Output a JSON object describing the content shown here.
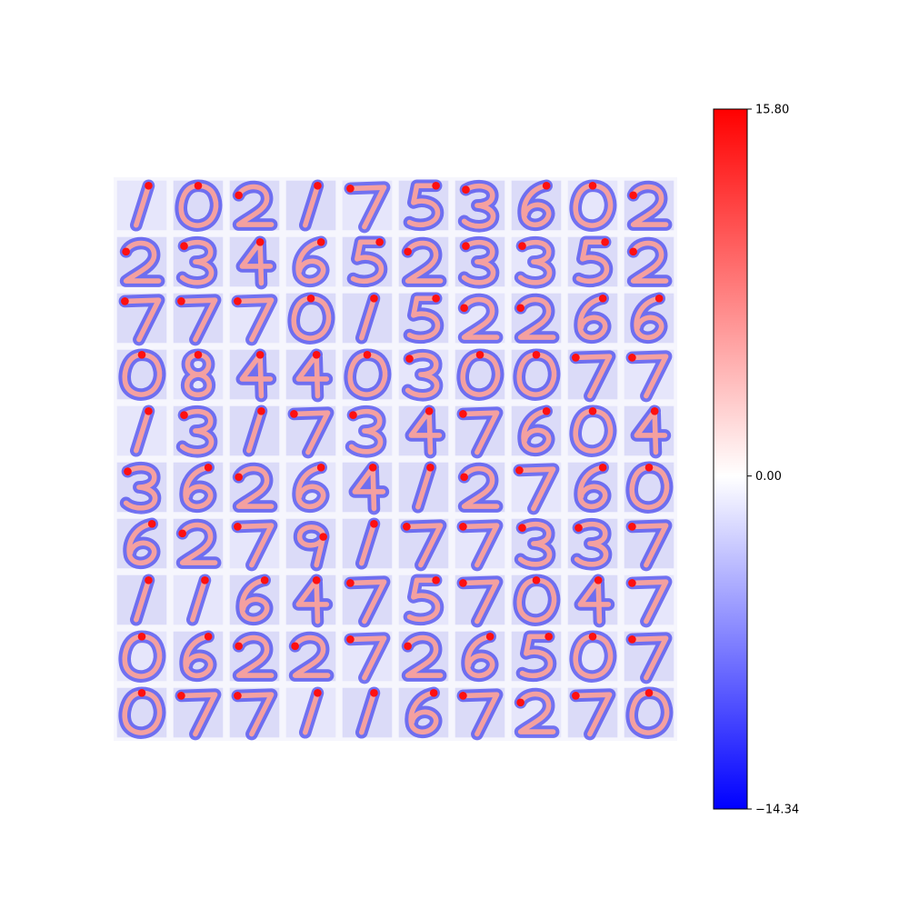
{
  "chart_data": {
    "type": "heatmap",
    "title": "",
    "xlabel": "",
    "ylabel": "",
    "grid": {
      "rows": 10,
      "cols": 10
    },
    "digits": [
      [
        1,
        0,
        2,
        1,
        7,
        5,
        3,
        6,
        0,
        2
      ],
      [
        2,
        3,
        4,
        6,
        5,
        2,
        3,
        3,
        5,
        2
      ],
      [
        7,
        7,
        7,
        0,
        1,
        5,
        2,
        2,
        6,
        6
      ],
      [
        0,
        8,
        4,
        4,
        0,
        3,
        0,
        0,
        7,
        7
      ],
      [
        1,
        3,
        1,
        7,
        3,
        4,
        7,
        6,
        0,
        4
      ],
      [
        3,
        6,
        2,
        6,
        4,
        1,
        2,
        7,
        6,
        0
      ],
      [
        6,
        2,
        7,
        9,
        1,
        7,
        7,
        3,
        3,
        7
      ],
      [
        1,
        1,
        6,
        4,
        7,
        5,
        7,
        0,
        4,
        7
      ],
      [
        0,
        6,
        2,
        2,
        7,
        2,
        6,
        5,
        0,
        7
      ],
      [
        0,
        7,
        7,
        1,
        1,
        6,
        7,
        2,
        7,
        0
      ]
    ],
    "colormap": "bwr",
    "colorbar": {
      "min": -14.34,
      "max": 15.8,
      "ticks": [
        {
          "value": 15.8,
          "label": "15.80"
        },
        {
          "value": 0.0,
          "label": "0.00"
        },
        {
          "value": -14.34,
          "label": "−14.34"
        }
      ]
    },
    "colors": {
      "low": "#0000ff",
      "mid": "#ffffff",
      "high": "#ff0000"
    }
  }
}
